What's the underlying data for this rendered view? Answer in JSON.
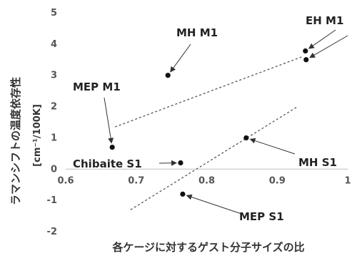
{
  "chart_data": {
    "type": "scatter",
    "xlim": [
      0.6,
      1.0
    ],
    "ylim": [
      -2,
      5
    ],
    "x_ticks": [
      "0.6",
      "0.7",
      "0.8",
      "0.9",
      "1"
    ],
    "y_ticks": [
      "-2",
      "-1",
      "0",
      "1",
      "2",
      "3",
      "4",
      "5"
    ],
    "xlabel": "各ケージに対するゲスト分子サイズの比",
    "ylabel": "ラマンシフトの温度依存性",
    "ylabel_unit": "[cm⁻¹/100K]",
    "grid": false,
    "marker_color": "#111111",
    "points": [
      {
        "x": 0.745,
        "y": 3.0
      },
      {
        "x": 0.94,
        "y": 3.78
      },
      {
        "x": 0.941,
        "y": 3.5
      },
      {
        "x": 0.666,
        "y": 0.7
      },
      {
        "x": 0.856,
        "y": 1.0
      },
      {
        "x": 0.763,
        "y": 0.2
      },
      {
        "x": 0.766,
        "y": -0.8
      }
    ],
    "annotations": [
      {
        "text": "MH M1"
      },
      {
        "text": "EH M1"
      },
      {
        "text": "MEP M1"
      },
      {
        "text": "Chibaite S1"
      },
      {
        "text": "MH S1"
      },
      {
        "text": "MEP S1"
      }
    ],
    "trend_lines": [
      {
        "x1": 0.67,
        "y1": 1.35,
        "x2": 0.936,
        "y2": 3.6
      },
      {
        "x1": 0.692,
        "y1": -1.3,
        "x2": 0.929,
        "y2": 2.0
      }
    ]
  }
}
